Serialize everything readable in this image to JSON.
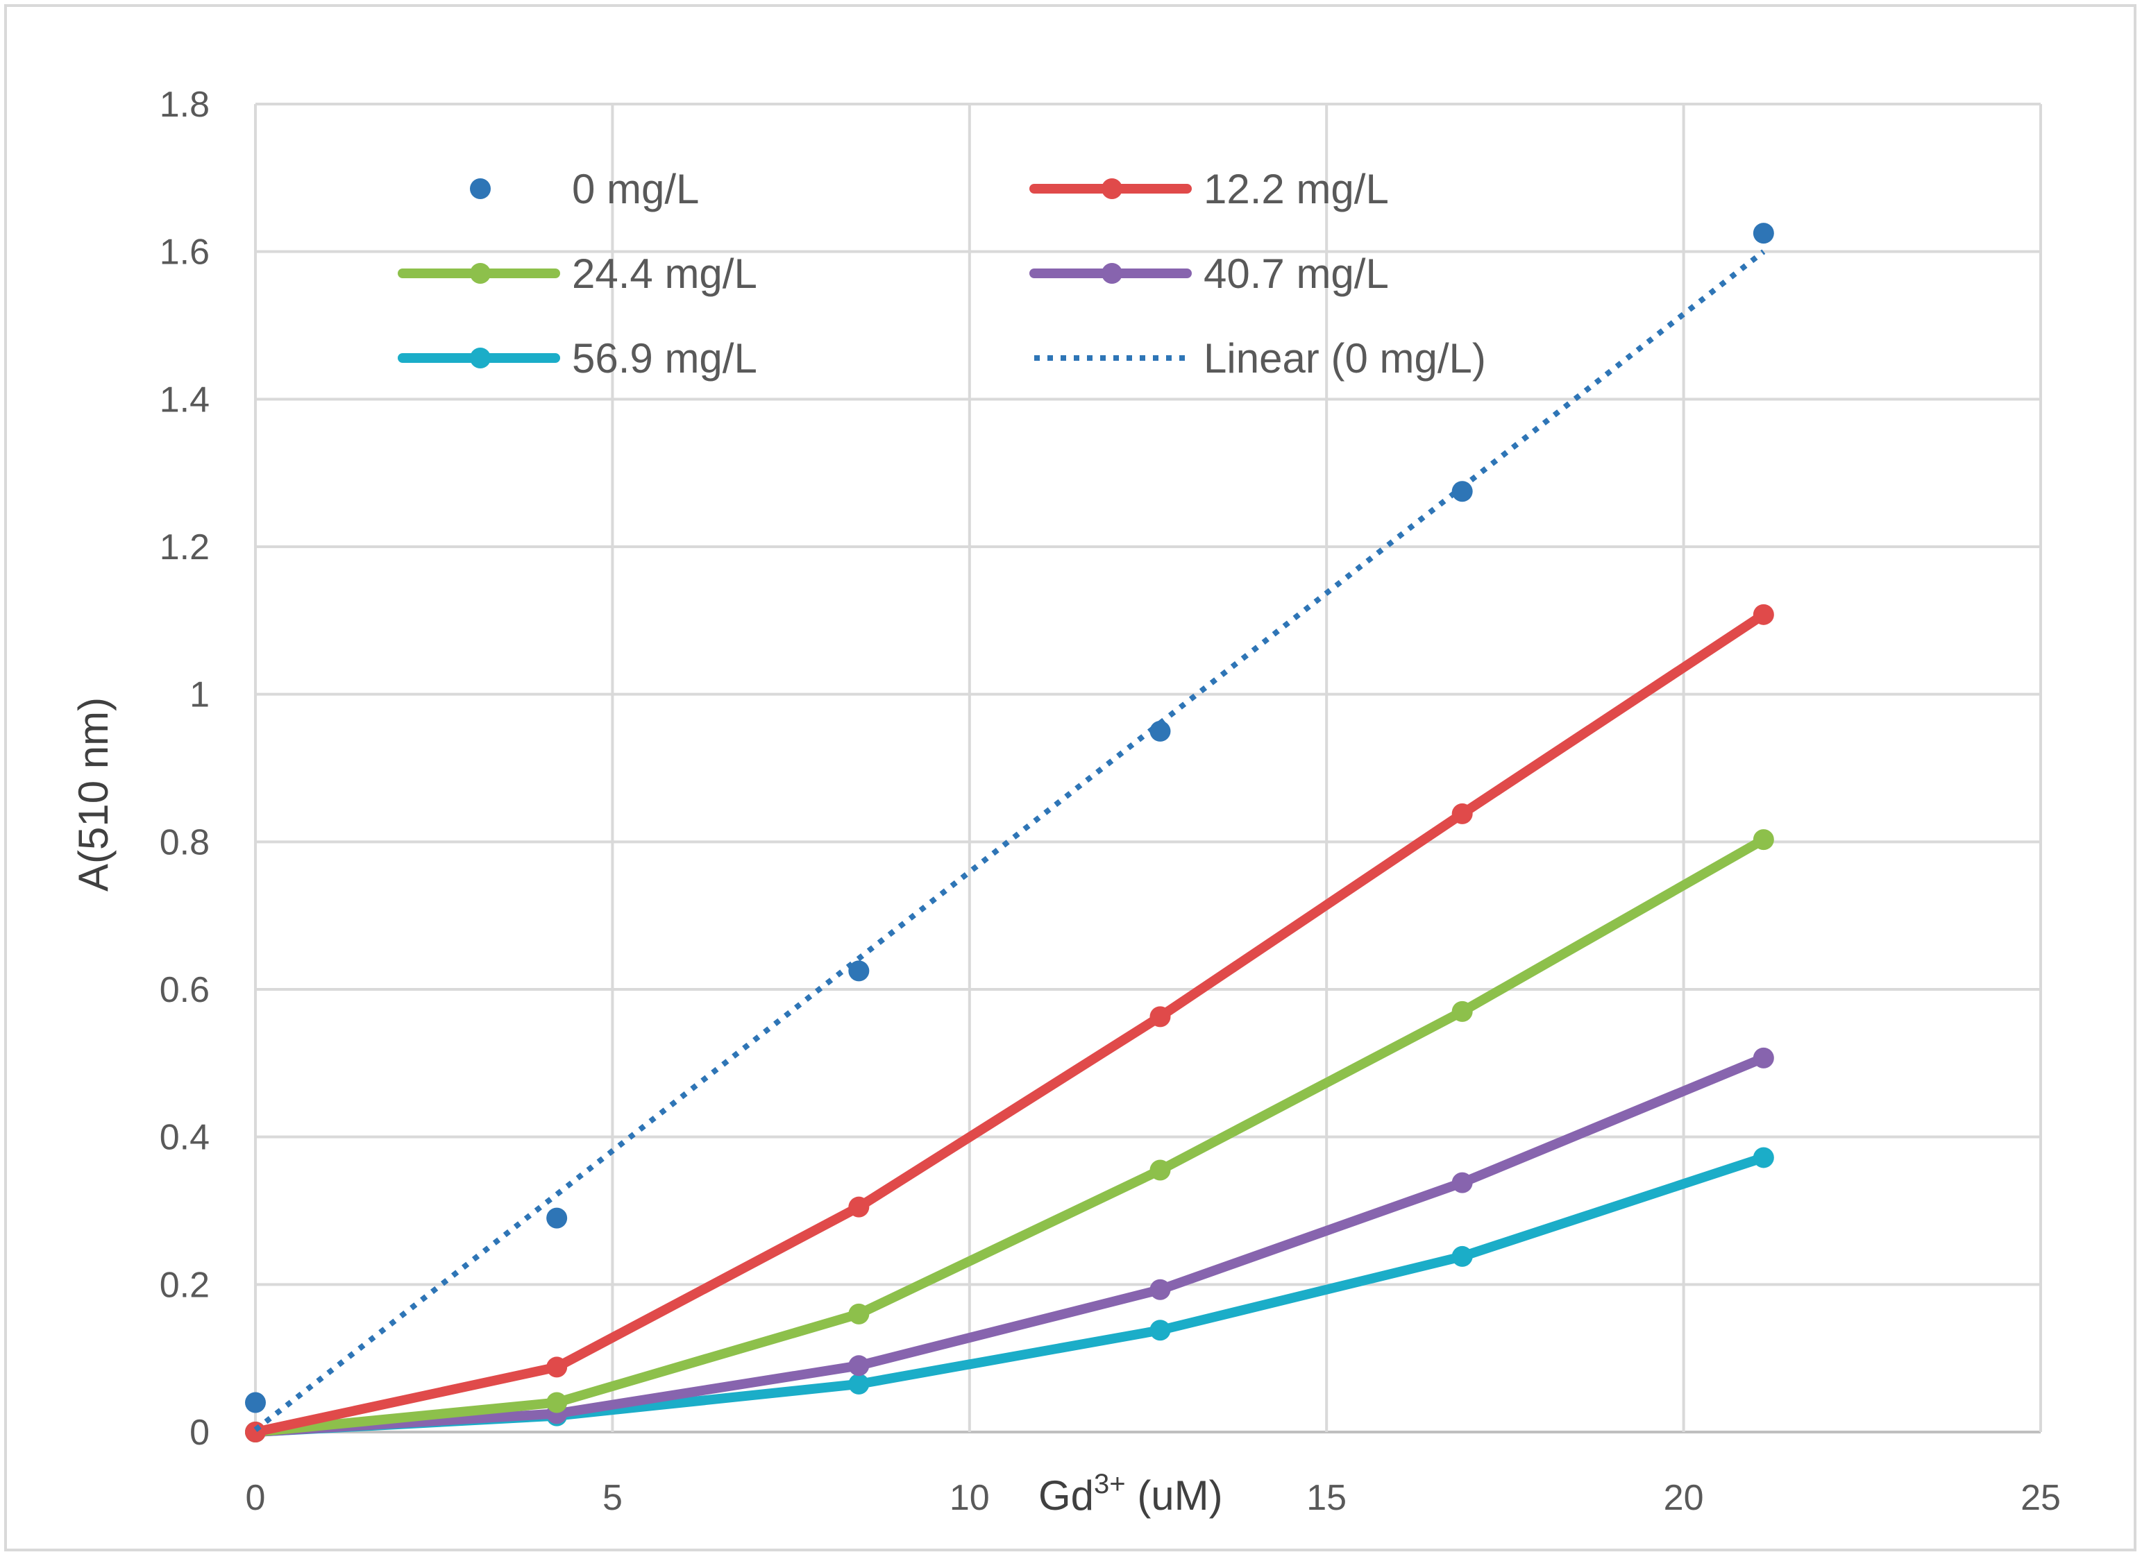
{
  "chart_data": {
    "type": "line",
    "title": "",
    "xlabel": "Gd3+ (uM)",
    "xlabel_parts": {
      "base": "Gd",
      "sup": "3+",
      "rest": " (uM)"
    },
    "ylabel": "A(510 nm)",
    "xlim": [
      0,
      25
    ],
    "ylim": [
      0,
      1.8
    ],
    "xticks": [
      0,
      5,
      10,
      15,
      20,
      25
    ],
    "xtick_labels": [
      "0",
      "5",
      "10",
      "15",
      "20",
      "25"
    ],
    "yticks": [
      0,
      0.2,
      0.4,
      0.6,
      0.8,
      1,
      1.2,
      1.4,
      1.6,
      1.8
    ],
    "ytick_labels": [
      "0",
      "0.2",
      "0.4",
      "0.6",
      "0.8",
      "1",
      "1.2",
      "1.4",
      "1.6",
      "1.8"
    ],
    "grid": true,
    "legend_position": "top",
    "x": [
      0,
      4.22,
      8.45,
      12.67,
      16.9,
      21.12
    ],
    "series": [
      {
        "name": "0 mg/L",
        "style": "markers",
        "color": "#2E75B6",
        "values": [
          0.04,
          0.29,
          0.625,
          0.95,
          1.275,
          1.625
        ]
      },
      {
        "name": "12.2 mg/L",
        "style": "line-markers",
        "color": "#E04A4A",
        "values": [
          0,
          0.088,
          0.305,
          0.563,
          0.838,
          1.108
        ]
      },
      {
        "name": "24.4 mg/L",
        "style": "line-markers",
        "color": "#8DC04B",
        "values": [
          0,
          0.04,
          0.16,
          0.355,
          0.57,
          0.803
        ]
      },
      {
        "name": "40.7 mg/L",
        "style": "line-markers",
        "color": "#8764AE",
        "values": [
          0,
          0.025,
          0.09,
          0.193,
          0.338,
          0.507
        ]
      },
      {
        "name": "56.9 mg/L",
        "style": "line-markers",
        "color": "#1BADC8",
        "values": [
          0,
          0.022,
          0.065,
          0.138,
          0.238,
          0.372
        ]
      }
    ],
    "trendline": {
      "name": "Linear (0 mg/L)",
      "color": "#2E75B6",
      "style": "dotted",
      "x": [
        0,
        21.12
      ],
      "y": [
        0.003,
        1.6
      ]
    }
  }
}
